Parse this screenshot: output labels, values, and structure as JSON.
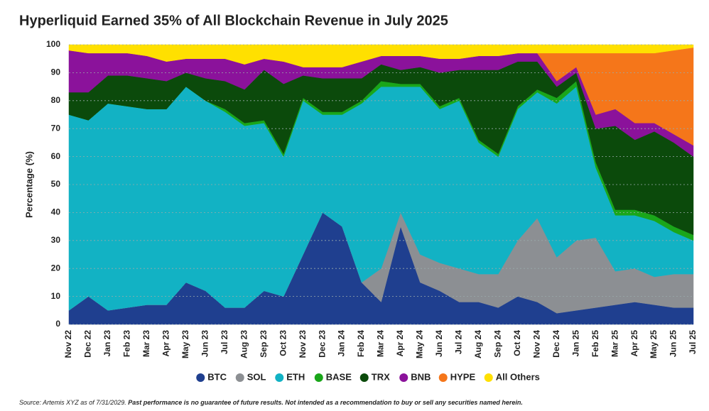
{
  "chart_data": {
    "type": "stacked_area",
    "title": "Hyperliquid Earned 35% of All Blockchain Revenue in July 2025",
    "y_label": "Percentage (%)",
    "source_label": "Source: Artemis XYZ as of 7/31/2029.",
    "disclaimer": "Past performance is no guarantee of future results. Not intended as a recommendation to buy or sell any securities named herein.",
    "categories": [
      "Nov 22",
      "Dec 22",
      "Jan 23",
      "Feb 23",
      "Mar 23",
      "Apr 23",
      "May 23",
      "Jun 23",
      "Jul 23",
      "Aug 23",
      "Sep 23",
      "Oct 23",
      "Nov 23",
      "Dec 23",
      "Jan 24",
      "Feb 24",
      "Mar 24",
      "Apr 24",
      "May 24",
      "Jun 24",
      "Jul 24",
      "Aug 24",
      "Sep 24",
      "Oct 24",
      "Nov 24",
      "Dec 24",
      "Jan 25",
      "Feb 25",
      "Mar 25",
      "Apr 25",
      "May 25",
      "Jun 25",
      "Jul 25"
    ],
    "series": [
      {
        "name": "BTC",
        "color": "#1f3f8f",
        "values": [
          5,
          10,
          5,
          6,
          7,
          7,
          15,
          12,
          6,
          6,
          12,
          10,
          25,
          40,
          35,
          15,
          8,
          35,
          15,
          12,
          8,
          8,
          6,
          10,
          8,
          4,
          5,
          6,
          7,
          8,
          7,
          6,
          6
        ]
      },
      {
        "name": "SOL",
        "color": "#8c8f93",
        "values": [
          0,
          0,
          0,
          0,
          0,
          0,
          0,
          0,
          0,
          0,
          0,
          0,
          0,
          0,
          0,
          0,
          12,
          5,
          10,
          10,
          12,
          10,
          12,
          20,
          30,
          20,
          25,
          25,
          12,
          12,
          10,
          12,
          12
        ]
      },
      {
        "name": "ETH",
        "color": "#12b2c4",
        "values": [
          70,
          63,
          74,
          72,
          70,
          70,
          70,
          68,
          70,
          65,
          60,
          50,
          55,
          35,
          40,
          64,
          65,
          45,
          60,
          55,
          60,
          47,
          42,
          47,
          45,
          55,
          55,
          25,
          20,
          19,
          20,
          15,
          12
        ]
      },
      {
        "name": "BASE",
        "color": "#1aa61a",
        "values": [
          0,
          0,
          0,
          0,
          0,
          0,
          0,
          0,
          1,
          1,
          1,
          1,
          1,
          1,
          1,
          1,
          2,
          1,
          1,
          1,
          1,
          1,
          1,
          1,
          1,
          2,
          2,
          2,
          2,
          2,
          2,
          2,
          2
        ]
      },
      {
        "name": "TRX",
        "color": "#0b4a0b",
        "values": [
          8,
          10,
          10,
          11,
          11,
          10,
          5,
          8,
          10,
          12,
          18,
          25,
          8,
          12,
          12,
          8,
          6,
          5,
          6,
          12,
          10,
          25,
          30,
          16,
          10,
          4,
          3,
          12,
          30,
          25,
          30,
          30,
          28
        ]
      },
      {
        "name": "BNB",
        "color": "#8b129b",
        "values": [
          15,
          14,
          8,
          8,
          8,
          7,
          5,
          7,
          8,
          9,
          4,
          8,
          3,
          4,
          4,
          6,
          3,
          5,
          4,
          5,
          4,
          5,
          5,
          3,
          3,
          2,
          2,
          5,
          6,
          6,
          3,
          3,
          4
        ]
      },
      {
        "name": "HYPE",
        "color": "#f5761a",
        "values": [
          0,
          0,
          0,
          0,
          0,
          0,
          0,
          0,
          0,
          0,
          0,
          0,
          0,
          0,
          0,
          0,
          0,
          0,
          0,
          0,
          0,
          0,
          0,
          0,
          0,
          10,
          5,
          22,
          20,
          25,
          25,
          30,
          35
        ]
      },
      {
        "name": "All Others",
        "color": "#ffe000",
        "values": [
          2,
          3,
          3,
          3,
          4,
          6,
          5,
          5,
          5,
          7,
          5,
          6,
          8,
          8,
          8,
          6,
          4,
          4,
          4,
          5,
          5,
          4,
          4,
          3,
          3,
          3,
          3,
          3,
          3,
          3,
          3,
          2,
          1
        ]
      }
    ],
    "ylim": [
      0,
      100
    ],
    "yticks": [
      0,
      10,
      20,
      30,
      40,
      50,
      60,
      70,
      80,
      90,
      100
    ],
    "grid": true
  }
}
